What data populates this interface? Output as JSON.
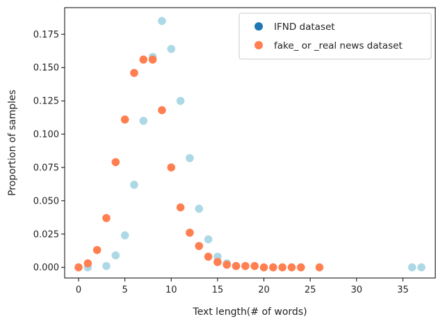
{
  "chart_data": {
    "type": "scatter",
    "title": "",
    "xlabel": "Text length(# of words)",
    "ylabel": "Proportion of samples",
    "xlim": [
      -1.5,
      38.5
    ],
    "ylim": [
      -0.008,
      0.195
    ],
    "xticks": [
      0,
      5,
      10,
      15,
      20,
      25,
      30,
      35
    ],
    "yticks": [
      "0.000",
      "0.025",
      "0.050",
      "0.075",
      "0.100",
      "0.125",
      "0.150",
      "0.175"
    ],
    "grid": false,
    "legend_position": "top-right",
    "legend": [
      {
        "label": "IFND dataset",
        "color": "#1f77b4"
      },
      {
        "label": "fake_ or _real news dataset",
        "color": "#ff7f50"
      }
    ],
    "series": [
      {
        "name": "IFND dataset",
        "color": "#add8e6",
        "points": [
          [
            1,
            0.0
          ],
          [
            3,
            0.001
          ],
          [
            4,
            0.009
          ],
          [
            5,
            0.024
          ],
          [
            6,
            0.062
          ],
          [
            7,
            0.11
          ],
          [
            8,
            0.158
          ],
          [
            9,
            0.185
          ],
          [
            10,
            0.164
          ],
          [
            11,
            0.125
          ],
          [
            12,
            0.082
          ],
          [
            13,
            0.044
          ],
          [
            14,
            0.021
          ],
          [
            15,
            0.008
          ],
          [
            16,
            0.003
          ],
          [
            17,
            0.001
          ],
          [
            21,
            0.0
          ],
          [
            24,
            0.0
          ],
          [
            36,
            0.0
          ],
          [
            37,
            0.0
          ]
        ]
      },
      {
        "name": "fake_ or _real news dataset",
        "color": "#ff7f50",
        "points": [
          [
            0,
            0.0
          ],
          [
            1,
            0.003
          ],
          [
            2,
            0.013
          ],
          [
            3,
            0.037
          ],
          [
            4,
            0.079
          ],
          [
            5,
            0.111
          ],
          [
            6,
            0.146
          ],
          [
            7,
            0.156
          ],
          [
            8,
            0.156
          ],
          [
            9,
            0.118
          ],
          [
            10,
            0.075
          ],
          [
            11,
            0.045
          ],
          [
            12,
            0.026
          ],
          [
            13,
            0.016
          ],
          [
            14,
            0.008
          ],
          [
            15,
            0.004
          ],
          [
            16,
            0.002
          ],
          [
            17,
            0.001
          ],
          [
            18,
            0.001
          ],
          [
            19,
            0.001
          ],
          [
            20,
            0.0
          ],
          [
            21,
            0.0
          ],
          [
            22,
            0.0
          ],
          [
            23,
            0.0
          ],
          [
            24,
            0.0
          ],
          [
            26,
            0.0
          ]
        ]
      }
    ]
  }
}
